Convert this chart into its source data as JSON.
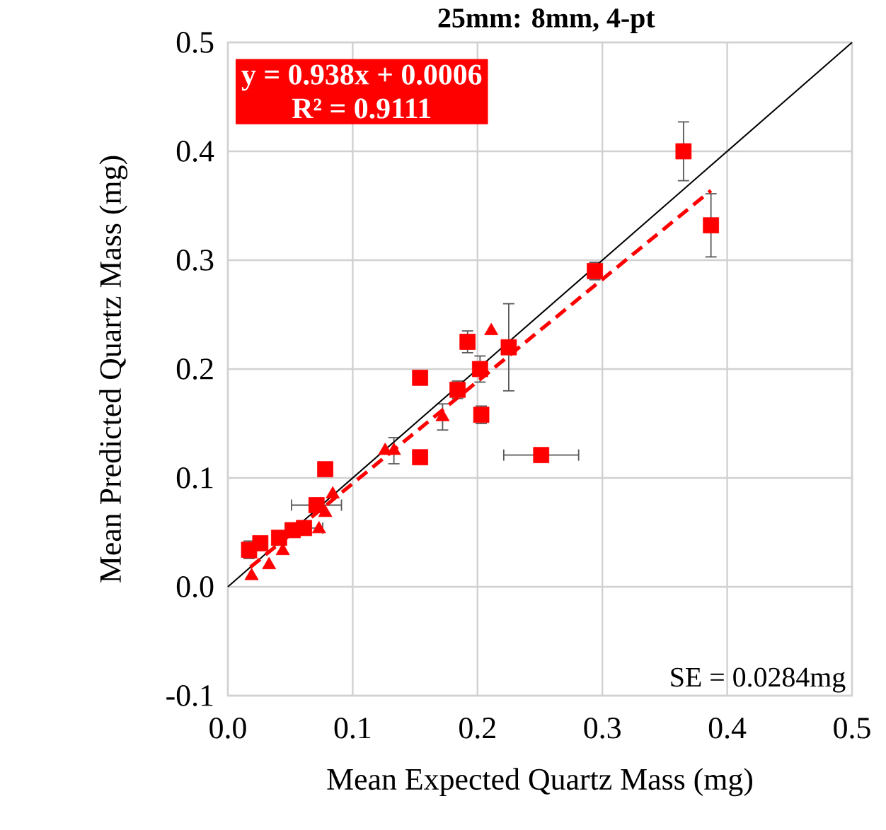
{
  "chart_data": {
    "type": "scatter",
    "title": "25mm: 8mm, 4-pt",
    "xlabel": "Mean Expected Quartz Mass (mg)",
    "ylabel": "Mean Predicted Quartz Mass (mg)",
    "xlim": [
      0,
      0.5
    ],
    "ylim": [
      -0.1,
      0.5
    ],
    "xticks": [
      {
        "value": 0,
        "label": "0.0"
      },
      0.1,
      0.2,
      0.3,
      0.4,
      0.5
    ],
    "yticks": [
      -0.1,
      {
        "value": 0,
        "label": "0.0"
      },
      0.1,
      0.2,
      0.3,
      0.4,
      0.5
    ],
    "grid": true,
    "series": [
      {
        "color": "#ff0000",
        "marker": "square",
        "x": [
          0.365,
          0.387,
          0.294,
          0.192,
          0.154,
          0.202,
          0.225,
          0.203,
          0.184,
          0.154,
          0.251,
          0.078,
          0.071,
          0.026,
          0.041,
          0.052,
          0.061,
          0.017
        ],
        "values": [
          0.4,
          0.332,
          0.29,
          0.225,
          0.192,
          0.2,
          0.22,
          0.158,
          0.181,
          0.119,
          0.121,
          0.108,
          0.075,
          0.04,
          0.045,
          0.052,
          0.054,
          0.034
        ],
        "errors": [
          0.027,
          0.029,
          0.008,
          0.01,
          null,
          0.012,
          0.04,
          0.008,
          0.008,
          null,
          null,
          null,
          null,
          null,
          null,
          null,
          null,
          0.008
        ],
        "xerrors": [
          null,
          null,
          null,
          null,
          null,
          null,
          null,
          null,
          null,
          null,
          0.03,
          null,
          0.02,
          null,
          null,
          null,
          0.015,
          null
        ]
      },
      {
        "color": "#ff0000",
        "marker": "triangle",
        "x": [
          0.211,
          0.172,
          0.133,
          0.126,
          0.084,
          0.078,
          0.073,
          0.033,
          0.019,
          0.018,
          0.044
        ],
        "values": [
          0.235,
          0.156,
          0.125,
          0.125,
          0.085,
          0.068,
          0.053,
          0.02,
          0.01,
          0.03,
          0.033
        ],
        "errors": [
          null,
          0.012,
          0.012,
          null,
          null,
          null,
          null,
          null,
          null,
          null,
          null
        ]
      },
      {
        "type": "line",
        "color": "#000000",
        "line_style": "solid",
        "marker": "none",
        "x": [
          0,
          0.5
        ],
        "values": [
          0,
          0.5
        ]
      },
      {
        "type": "line",
        "color": "#ff0000",
        "line_style": "dashed",
        "marker": "none",
        "x": [
          0.018,
          0.387
        ],
        "values": [
          0.018,
          0.364
        ]
      }
    ],
    "annotations": [
      "y = 0.938x + 0.0006",
      "R² = 0.9111",
      "SE = 0.0284mg"
    ]
  }
}
